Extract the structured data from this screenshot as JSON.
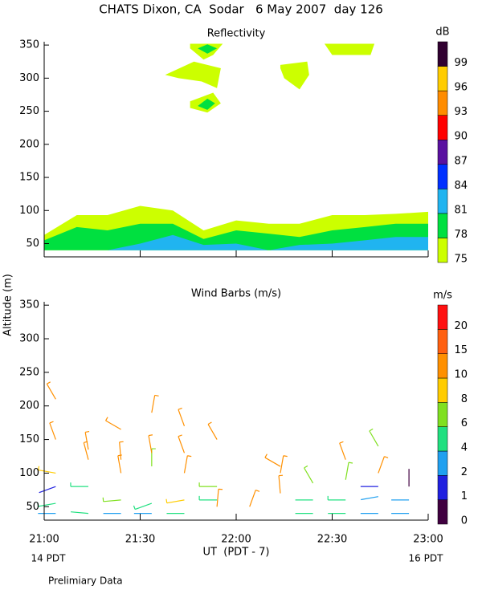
{
  "header": {
    "title": "CHATS Dixon, CA  Sodar   6 May 2007  day 126"
  },
  "ylabel": "Altitude (m)",
  "footer": {
    "start": "14 PDT",
    "end": "16 PDT",
    "note": "Prelimiary Data"
  },
  "chart_data": [
    {
      "type": "contour",
      "title": "Reflectivity",
      "xlim": [
        21,
        23
      ],
      "xticks": [
        21,
        21.5,
        22,
        22.5,
        23
      ],
      "ylim": [
        30,
        355
      ],
      "yticks": [
        50,
        100,
        150,
        200,
        250,
        300,
        350
      ],
      "colorbar": {
        "label": "dB",
        "levels": [
          75,
          78,
          81,
          84,
          87,
          90,
          93,
          96,
          99
        ],
        "colors": [
          "#ccff00",
          "#00e040",
          "#20b4f0",
          "#0030ff",
          "#5a10a0",
          "#ff0000",
          "#ff8c00",
          "#ffcc00",
          "#300030"
        ]
      },
      "regions": [
        {
          "level": 75,
          "x": [
            21,
            21,
            21.17,
            21.33,
            21.5,
            21.67,
            21.83,
            22,
            22.17,
            22.33,
            22.5,
            22.67,
            22.83,
            23,
            23
          ],
          "y": [
            40,
            63,
            93,
            93,
            107,
            100,
            70,
            85,
            80,
            80,
            93,
            93,
            95,
            98,
            40
          ]
        },
        {
          "level": 78,
          "x": [
            21,
            21,
            21.17,
            21.33,
            21.5,
            21.67,
            21.83,
            22,
            22.17,
            22.33,
            22.5,
            22.67,
            22.83,
            23,
            23
          ],
          "y": [
            40,
            55,
            75,
            70,
            80,
            80,
            57,
            70,
            65,
            60,
            70,
            75,
            80,
            80,
            40
          ]
        },
        {
          "level": 81,
          "x": [
            21,
            21.33,
            21.5,
            21.67,
            21.83,
            22,
            22.17,
            22.33,
            22.5,
            22.67,
            22.83,
            23,
            23
          ],
          "y": [
            40,
            40,
            50,
            63,
            48,
            50,
            40,
            48,
            50,
            55,
            60,
            60,
            40
          ]
        },
        {
          "level": 75,
          "x": [
            21.76,
            21.93,
            21.88,
            21.83,
            21.76
          ],
          "y": [
            352,
            352,
            335,
            328,
            345
          ]
        },
        {
          "level": 75,
          "x": [
            21.63,
            21.78,
            21.92,
            21.9,
            21.82,
            21.7
          ],
          "y": [
            305,
            325,
            315,
            285,
            295,
            300
          ]
        },
        {
          "level": 75,
          "x": [
            21.76,
            21.88,
            21.92,
            21.85,
            21.76
          ],
          "y": [
            265,
            278,
            262,
            248,
            255
          ]
        },
        {
          "level": 75,
          "x": [
            22.23,
            22.37,
            22.38,
            22.33,
            22.25,
            22.23
          ],
          "y": [
            320,
            325,
            305,
            283,
            300,
            315
          ]
        },
        {
          "level": 75,
          "x": [
            22.46,
            22.72,
            22.7,
            22.5
          ],
          "y": [
            352,
            352,
            335,
            335
          ]
        },
        {
          "level": 78,
          "x": [
            21.8,
            21.85,
            21.9,
            21.85
          ],
          "y": [
            345,
            351,
            345,
            337
          ]
        },
        {
          "level": 78,
          "x": [
            21.8,
            21.85,
            21.89,
            21.85
          ],
          "y": [
            258,
            269,
            262,
            252
          ]
        }
      ]
    },
    {
      "type": "barbs",
      "title": "Wind Barbs (m/s)",
      "xlabel": "UT  (PDT - 7)",
      "xlim": [
        21,
        23
      ],
      "xticks": [
        {
          "value": 21,
          "label": "21:00"
        },
        {
          "value": 21.5,
          "label": "21:30"
        },
        {
          "value": 22,
          "label": "22:00"
        },
        {
          "value": 22.5,
          "label": "22:30"
        },
        {
          "value": 23,
          "label": "23:00"
        }
      ],
      "ylim": [
        30,
        355
      ],
      "yticks": [
        50,
        100,
        150,
        200,
        250,
        300,
        350
      ],
      "colorbar": {
        "label": "m/s",
        "levels": [
          0,
          1,
          2,
          4,
          6,
          8,
          10,
          15,
          20
        ],
        "colors": [
          "#400040",
          "#2020e0",
          "#20a0f0",
          "#20e080",
          "#80e020",
          "#ffcc00",
          "#ff9000",
          "#ff6010",
          "#ff1010"
        ]
      },
      "x": [
        21.06,
        21.06,
        21.06,
        21.06,
        21.06,
        21.06,
        21.23,
        21.23,
        21.23,
        21.23,
        21.4,
        21.4,
        21.4,
        21.4,
        21.4,
        21.56,
        21.56,
        21.56,
        21.56,
        21.56,
        21.73,
        21.73,
        21.73,
        21.73,
        21.73,
        21.9,
        21.9,
        21.9,
        21.9,
        22.07,
        22.23,
        22.23,
        22.23,
        22.4,
        22.4,
        22.4,
        22.57,
        22.57,
        22.57,
        22.57,
        22.74,
        22.74,
        22.74,
        22.74,
        22.74,
        22.9,
        22.9,
        22.9
      ],
      "y": [
        40,
        55,
        80,
        100,
        150,
        210,
        40,
        80,
        120,
        135,
        40,
        60,
        100,
        120,
        165,
        40,
        55,
        110,
        130,
        190,
        40,
        60,
        100,
        130,
        170,
        60,
        80,
        150,
        50,
        50,
        70,
        100,
        110,
        40,
        60,
        85,
        40,
        60,
        90,
        120,
        40,
        65,
        80,
        100,
        140,
        40,
        60,
        80
      ],
      "speed": [
        3,
        5,
        1.5,
        9,
        11,
        11,
        4,
        5,
        12,
        13,
        3,
        7,
        11,
        11,
        11,
        3,
        5,
        6,
        11,
        11,
        4,
        9,
        11,
        11,
        12,
        5,
        7,
        11,
        12,
        11,
        10,
        11,
        10,
        4,
        4,
        6,
        4,
        5,
        6,
        11,
        3,
        3,
        1,
        10,
        6,
        3,
        3,
        0.5
      ],
      "direction": [
        270,
        260,
        250,
        280,
        340,
        330,
        275,
        270,
        345,
        350,
        270,
        265,
        350,
        355,
        300,
        270,
        250,
        0,
        350,
        10,
        270,
        260,
        10,
        340,
        340,
        270,
        270,
        330,
        5,
        20,
        355,
        10,
        300,
        270,
        270,
        330,
        270,
        270,
        10,
        340,
        270,
        260,
        270,
        20,
        330,
        270,
        270,
        0
      ]
    }
  ]
}
